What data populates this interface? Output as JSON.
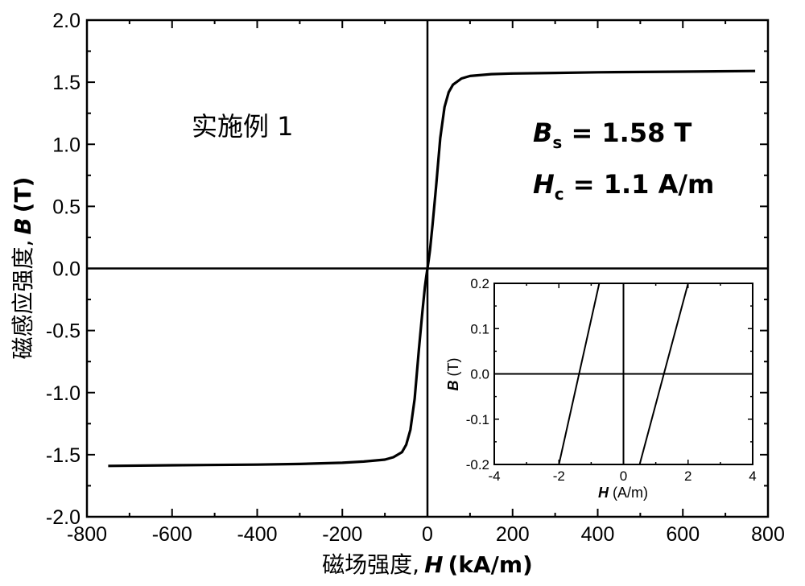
{
  "chart_data": {
    "type": "line",
    "main": {
      "xlabel_cn": "磁场强度,",
      "xlabel_var": "H",
      "xlabel_unit": "(kA/m)",
      "ylabel_cn": "磁感应强度,",
      "ylabel_var": "B",
      "ylabel_unit": "(T)",
      "xlim": [
        -800,
        800
      ],
      "ylim": [
        -2.0,
        2.0
      ],
      "xticks": [
        "-800",
        "-600",
        "-400",
        "-200",
        "0",
        "200",
        "400",
        "600",
        "800"
      ],
      "yticks": [
        "-2.0",
        "-1.5",
        "-1.0",
        "-0.5",
        "0.0",
        "0.5",
        "1.0",
        "1.5",
        "2.0"
      ],
      "series": [
        {
          "x": [
            -750,
            -600,
            -400,
            -300,
            -200,
            -150,
            -100,
            -80,
            -60,
            -50,
            -40,
            -30,
            -20,
            -12,
            -6,
            -3,
            0,
            3,
            6,
            12,
            20,
            30,
            40,
            50,
            60,
            80,
            100,
            150,
            200,
            300,
            400,
            600,
            770
          ],
          "y": [
            -1.59,
            -1.585,
            -1.58,
            -1.575,
            -1.565,
            -1.555,
            -1.54,
            -1.52,
            -1.48,
            -1.42,
            -1.3,
            -1.05,
            -0.65,
            -0.35,
            -0.15,
            -0.07,
            0.0,
            0.07,
            0.15,
            0.35,
            0.65,
            1.05,
            1.3,
            1.42,
            1.48,
            1.53,
            1.55,
            1.565,
            1.57,
            1.575,
            1.58,
            1.585,
            1.59
          ]
        }
      ],
      "annotation_title": "实施例 1",
      "annotation_bs_var": "B",
      "annotation_bs_sub": "s",
      "annotation_bs_val": " = 1.58 T",
      "annotation_hc_var": "H",
      "annotation_hc_sub": "c",
      "annotation_hc_val": " = 1.1 A/m"
    },
    "inset": {
      "type": "line",
      "xlabel_var": "H",
      "xlabel_unit": "(A/m)",
      "ylabel_var": "B",
      "ylabel_unit": "(T)",
      "xlim": [
        -4,
        4
      ],
      "ylim": [
        -0.2,
        0.2
      ],
      "xticks": [
        "-4",
        "-2",
        "0",
        "2",
        "4"
      ],
      "yticks": [
        "-0.2",
        "-0.1",
        "0.0",
        "0.1",
        "0.2"
      ],
      "series": [
        {
          "x": [
            -2.0,
            -0.75
          ],
          "y": [
            -0.2,
            0.2
          ]
        },
        {
          "x": [
            0.5,
            2.0
          ],
          "y": [
            -0.2,
            0.2
          ]
        }
      ]
    }
  }
}
